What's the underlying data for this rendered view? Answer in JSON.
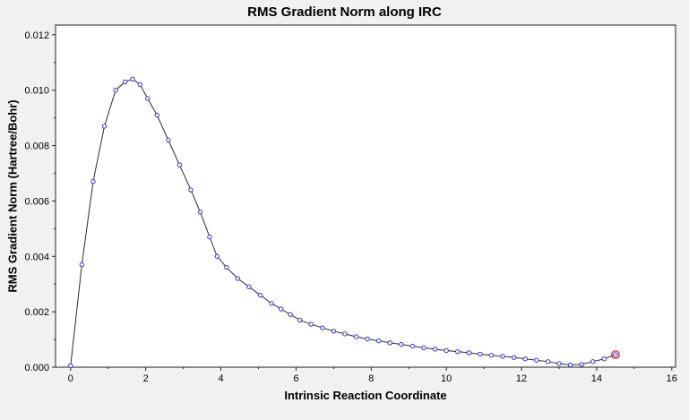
{
  "chart_data": {
    "type": "line",
    "title": "RMS Gradient Norm along IRC",
    "xlabel": "Intrinsic Reaction Coordinate",
    "ylabel": "RMS Gradient Norm (Hartree/Bohr)",
    "xlim": [
      -0.4,
      16.1
    ],
    "ylim": [
      0,
      0.01235
    ],
    "x_ticks": [
      0,
      2,
      4,
      6,
      8,
      10,
      12,
      14,
      16
    ],
    "x_tick_labels": [
      "0",
      "2",
      "4",
      "6",
      "8",
      "10",
      "12",
      "14",
      "16"
    ],
    "x_minor_step": 1,
    "y_ticks": [
      0,
      0.002,
      0.004,
      0.006,
      0.008,
      0.01,
      0.012
    ],
    "y_tick_labels": [
      "0.000",
      "0.002",
      "0.004",
      "0.006",
      "0.008",
      "0.010",
      "0.012"
    ],
    "y_minor_step": 0.001,
    "grid": false,
    "legend_position": "none",
    "series": [
      {
        "name": "RMS Gradient Norm",
        "x": [
          0,
          0.3,
          0.6,
          0.9,
          1.2,
          1.45,
          1.65,
          1.85,
          2.05,
          2.3,
          2.6,
          2.9,
          3.2,
          3.45,
          3.7,
          3.9,
          4.15,
          4.45,
          4.75,
          5.05,
          5.35,
          5.6,
          5.85,
          6.1,
          6.4,
          6.7,
          7.0,
          7.3,
          7.6,
          7.9,
          8.2,
          8.5,
          8.8,
          9.1,
          9.4,
          9.7,
          10.0,
          10.3,
          10.6,
          10.9,
          11.2,
          11.5,
          11.8,
          12.1,
          12.4,
          12.7,
          13.0,
          13.3,
          13.6,
          13.9,
          14.2,
          14.5
        ],
        "y": [
          5e-05,
          0.0037,
          0.0067,
          0.0087,
          0.01,
          0.0103,
          0.0104,
          0.0102,
          0.0097,
          0.0091,
          0.0082,
          0.0073,
          0.0064,
          0.0056,
          0.0047,
          0.004,
          0.0036,
          0.0032,
          0.0029,
          0.0026,
          0.0023,
          0.0021,
          0.0019,
          0.0017,
          0.00155,
          0.00142,
          0.0013,
          0.0012,
          0.0011,
          0.00102,
          0.00095,
          0.00088,
          0.00082,
          0.00076,
          0.0007,
          0.00065,
          0.0006,
          0.00056,
          0.00052,
          0.00047,
          0.00043,
          0.00039,
          0.00035,
          0.0003,
          0.00025,
          0.0002,
          0.00013,
          8e-05,
          0.0001,
          0.0002,
          0.0003,
          0.00045
        ]
      }
    ],
    "highlight": {
      "series": 0,
      "index": 51
    },
    "colors": {
      "line": "#2b2b2b",
      "marker": "#3333c8",
      "highlight": "#d42a2a",
      "plot_bg": "#ffffff",
      "window_bg": "#f2f1f0",
      "axis": "#222222",
      "text": "#000000"
    }
  }
}
